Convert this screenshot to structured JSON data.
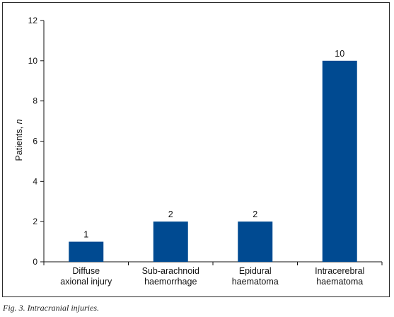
{
  "chart_data": {
    "type": "bar",
    "categories": [
      [
        "Diffuse",
        "axional injury"
      ],
      [
        "Sub-arachnoid",
        "haemorrhage"
      ],
      [
        "Epidural",
        "haematoma"
      ],
      [
        "Intracerebral",
        "haematoma"
      ]
    ],
    "values": [
      1,
      2,
      2,
      10
    ],
    "data_labels": [
      "1",
      "2",
      "2",
      "10"
    ],
    "ylabel": "Patients, ",
    "ylabel_italic": "n",
    "ylim": [
      0,
      12
    ],
    "yticks": [
      0,
      2,
      4,
      6,
      8,
      10,
      12
    ],
    "grid": false,
    "bar_color": "#004a91"
  },
  "caption": "Fig. 3. Intracranial injuries."
}
